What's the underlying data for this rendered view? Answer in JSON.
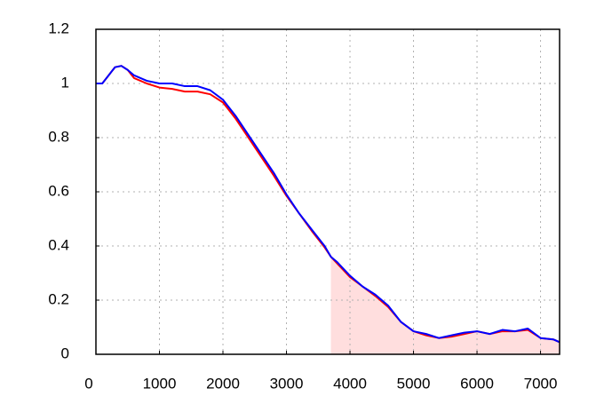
{
  "chart_data": {
    "type": "line",
    "x": [
      0,
      100,
      200,
      300,
      400,
      500,
      600,
      800,
      1000,
      1200,
      1400,
      1600,
      1800,
      2000,
      2200,
      2400,
      2600,
      2800,
      3000,
      3200,
      3400,
      3600,
      3700,
      3800,
      4000,
      4200,
      4400,
      4600,
      4800,
      5000,
      5200,
      5400,
      5600,
      5800,
      6000,
      6200,
      6400,
      6600,
      6800,
      7000,
      7200,
      7300
    ],
    "series": [
      {
        "color": "#ff0000",
        "values": [
          1.0,
          1.0,
          1.03,
          1.06,
          1.065,
          1.05,
          1.02,
          1.0,
          0.985,
          0.98,
          0.97,
          0.97,
          0.96,
          0.93,
          0.87,
          0.8,
          0.73,
          0.66,
          0.585,
          0.52,
          0.455,
          0.395,
          0.36,
          0.335,
          0.285,
          0.25,
          0.215,
          0.175,
          0.12,
          0.085,
          0.07,
          0.06,
          0.065,
          0.075,
          0.085,
          0.075,
          0.085,
          0.085,
          0.09,
          0.06,
          0.055,
          0.045
        ]
      },
      {
        "color": "#0000ff",
        "values": [
          1.0,
          1.0,
          1.03,
          1.06,
          1.065,
          1.05,
          1.03,
          1.01,
          1.0,
          1.0,
          0.99,
          0.99,
          0.975,
          0.94,
          0.88,
          0.81,
          0.74,
          0.67,
          0.59,
          0.52,
          0.46,
          0.4,
          0.36,
          0.34,
          0.29,
          0.25,
          0.22,
          0.18,
          0.12,
          0.085,
          0.075,
          0.06,
          0.07,
          0.08,
          0.085,
          0.075,
          0.09,
          0.085,
          0.095,
          0.06,
          0.055,
          0.045
        ]
      }
    ],
    "shade_from": 3700,
    "shade_series": 0,
    "shade_color": "#ffdede",
    "xlim": [
      0,
      7300
    ],
    "xticks": [
      0,
      1000,
      2000,
      3000,
      4000,
      5000,
      6000,
      7000
    ],
    "ylim": [
      0,
      1.2
    ],
    "yticks": [
      0,
      0.2,
      0.4,
      0.6,
      0.8,
      1,
      1.2
    ],
    "grid": true
  }
}
